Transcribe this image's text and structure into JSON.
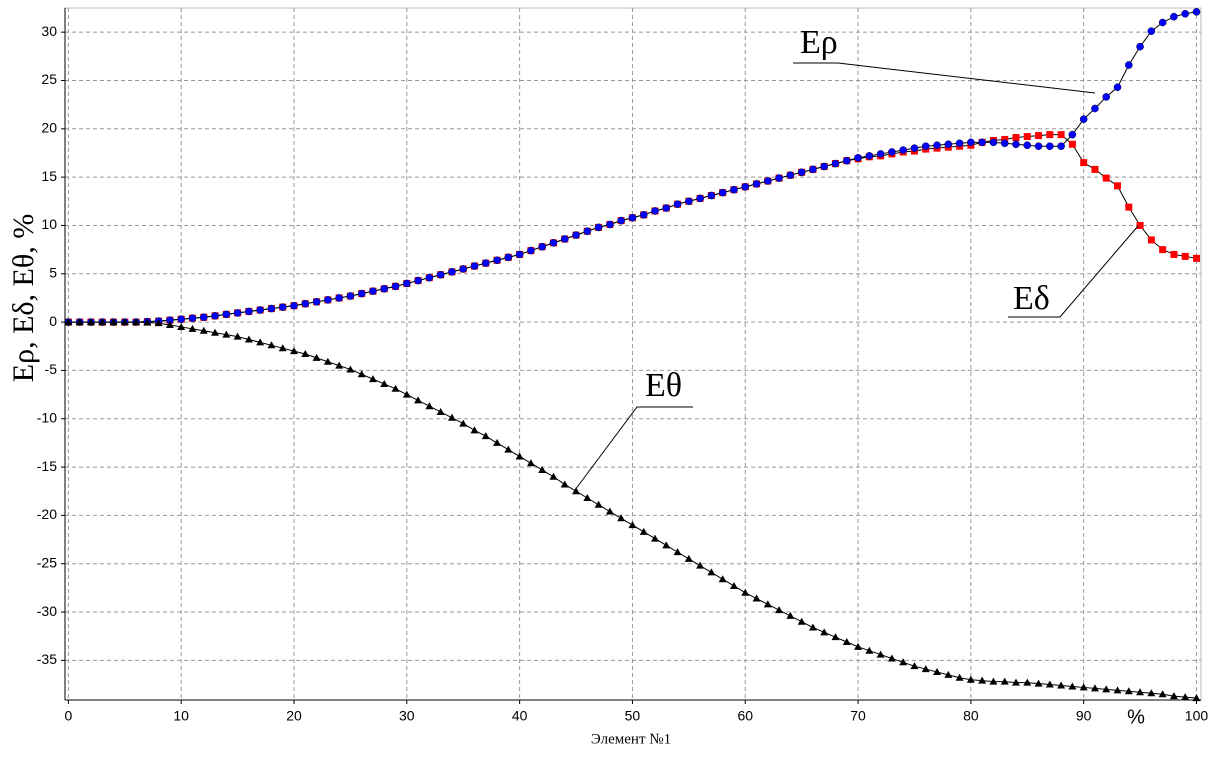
{
  "chart_data": {
    "type": "line",
    "x_label": "Элемент №1",
    "y_label": "Eρ, Eδ, Eθ, %",
    "x_unit_label": "%",
    "xlim": [
      -0.3,
      100.4
    ],
    "ylim": [
      -39.1,
      32.5
    ],
    "xticks": [
      0,
      10,
      20,
      30,
      40,
      50,
      60,
      70,
      80,
      90,
      100
    ],
    "yticks": [
      30,
      25,
      20,
      15,
      10,
      5,
      0,
      -5,
      -10,
      -15,
      -20,
      -25,
      -30,
      -35
    ],
    "grid": true,
    "x": [
      0,
      1,
      2,
      3,
      4,
      5,
      6,
      7,
      8,
      9,
      10,
      11,
      12,
      13,
      14,
      15,
      16,
      17,
      18,
      19,
      20,
      21,
      22,
      23,
      24,
      25,
      26,
      27,
      28,
      29,
      30,
      31,
      32,
      33,
      34,
      35,
      36,
      37,
      38,
      39,
      40,
      41,
      42,
      43,
      44,
      45,
      46,
      47,
      48,
      49,
      50,
      51,
      52,
      53,
      54,
      55,
      56,
      57,
      58,
      59,
      60,
      61,
      62,
      63,
      64,
      65,
      66,
      67,
      68,
      69,
      70,
      71,
      72,
      73,
      74,
      75,
      76,
      77,
      78,
      79,
      80,
      81,
      82,
      83,
      84,
      85,
      86,
      87,
      88,
      89,
      90,
      91,
      92,
      93,
      94,
      95,
      96,
      97,
      98,
      99,
      100
    ],
    "series": [
      {
        "name": "Eδ",
        "color": "#ff0000",
        "marker": "square",
        "values": [
          0,
          0,
          0,
          0,
          0,
          0,
          0,
          0.05,
          0.1,
          0.2,
          0.3,
          0.4,
          0.5,
          0.65,
          0.8,
          0.95,
          1.1,
          1.25,
          1.4,
          1.55,
          1.7,
          1.9,
          2.1,
          2.3,
          2.5,
          2.7,
          2.95,
          3.2,
          3.45,
          3.7,
          4.0,
          4.3,
          4.6,
          4.9,
          5.2,
          5.5,
          5.8,
          6.1,
          6.4,
          6.7,
          7.0,
          7.4,
          7.8,
          8.2,
          8.6,
          9.0,
          9.4,
          9.8,
          10.1,
          10.5,
          10.8,
          11.1,
          11.5,
          11.8,
          12.2,
          12.5,
          12.8,
          13.1,
          13.4,
          13.7,
          14.0,
          14.3,
          14.6,
          14.9,
          15.2,
          15.5,
          15.8,
          16.1,
          16.4,
          16.7,
          16.9,
          17.1,
          17.2,
          17.4,
          17.6,
          17.7,
          17.9,
          18.0,
          18.1,
          18.2,
          18.3,
          18.6,
          18.8,
          18.9,
          19.1,
          19.2,
          19.3,
          19.4,
          19.4,
          18.4,
          16.5,
          15.8,
          14.9,
          14.1,
          11.9,
          10.0,
          8.5,
          7.5,
          7.0,
          6.8,
          6.6
        ]
      },
      {
        "name": "Eρ",
        "color": "#0000ff",
        "marker": "circle",
        "values": [
          0,
          0,
          0,
          0,
          0,
          0,
          0,
          0.05,
          0.1,
          0.2,
          0.3,
          0.4,
          0.5,
          0.65,
          0.8,
          0.95,
          1.1,
          1.25,
          1.4,
          1.55,
          1.7,
          1.9,
          2.1,
          2.3,
          2.5,
          2.7,
          2.95,
          3.2,
          3.45,
          3.7,
          4.0,
          4.3,
          4.6,
          4.9,
          5.2,
          5.5,
          5.8,
          6.1,
          6.4,
          6.7,
          7.0,
          7.4,
          7.8,
          8.2,
          8.6,
          9.0,
          9.4,
          9.8,
          10.1,
          10.5,
          10.8,
          11.1,
          11.5,
          11.8,
          12.2,
          12.5,
          12.8,
          13.1,
          13.4,
          13.7,
          14.0,
          14.3,
          14.6,
          14.9,
          15.2,
          15.5,
          15.8,
          16.1,
          16.4,
          16.7,
          17.0,
          17.2,
          17.4,
          17.6,
          17.8,
          18.0,
          18.2,
          18.3,
          18.4,
          18.5,
          18.6,
          18.6,
          18.6,
          18.5,
          18.4,
          18.3,
          18.2,
          18.2,
          18.2,
          19.4,
          21.0,
          22.1,
          23.3,
          24.3,
          26.6,
          28.5,
          30.1,
          31.0,
          31.6,
          31.9,
          32.1
        ]
      },
      {
        "name": "Eθ",
        "color": "#000000",
        "marker": "triangle",
        "values": [
          0,
          0,
          0,
          0,
          0,
          0,
          0,
          -0.05,
          -0.1,
          -0.3,
          -0.5,
          -0.7,
          -0.9,
          -1.1,
          -1.3,
          -1.5,
          -1.8,
          -2.1,
          -2.4,
          -2.7,
          -3.0,
          -3.3,
          -3.7,
          -4.1,
          -4.5,
          -4.9,
          -5.4,
          -5.9,
          -6.4,
          -6.9,
          -7.5,
          -8.1,
          -8.7,
          -9.3,
          -9.9,
          -10.5,
          -11.2,
          -11.8,
          -12.5,
          -13.2,
          -13.9,
          -14.6,
          -15.3,
          -16.0,
          -16.8,
          -17.5,
          -18.2,
          -18.9,
          -19.6,
          -20.3,
          -21.0,
          -21.7,
          -22.4,
          -23.1,
          -23.8,
          -24.5,
          -25.2,
          -25.9,
          -26.6,
          -27.3,
          -28.0,
          -28.6,
          -29.2,
          -29.8,
          -30.4,
          -31.0,
          -31.6,
          -32.1,
          -32.6,
          -33.1,
          -33.6,
          -34.0,
          -34.4,
          -34.8,
          -35.2,
          -35.6,
          -35.9,
          -36.2,
          -36.5,
          -36.8,
          -37.0,
          -37.1,
          -37.2,
          -37.2,
          -37.3,
          -37.3,
          -37.4,
          -37.5,
          -37.6,
          -37.7,
          -37.8,
          -37.9,
          -38.0,
          -38.1,
          -38.2,
          -38.3,
          -38.4,
          -38.5,
          -38.7,
          -38.8,
          -38.9
        ]
      }
    ]
  }
}
